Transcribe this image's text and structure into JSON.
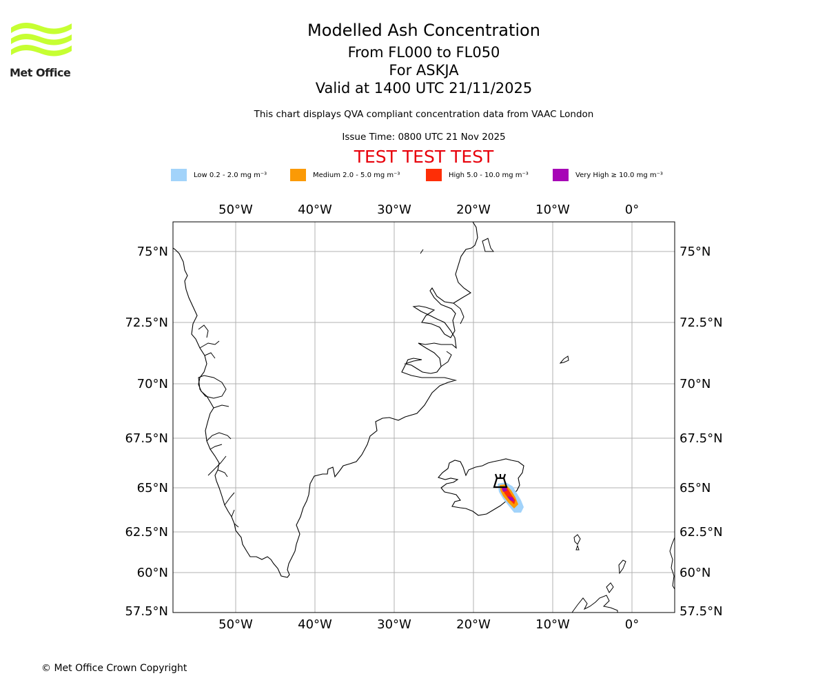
{
  "header": {
    "title": "Modelled Ash Concentration",
    "subtitle_levels": "From FL000 to FL050",
    "subtitle_volcano": "For ASKJA",
    "subtitle_valid": "Valid at 1400 UTC 21/11/2025",
    "description": "This chart displays QVA compliant concentration data from VAAC London",
    "issue_time": "Issue Time: 0800 UTC 21 Nov 2025",
    "test_banner": "TEST TEST TEST"
  },
  "logo": {
    "text": "Met Office",
    "icon": "met-office-wave-logo",
    "color": "#c6ff32"
  },
  "legend": [
    {
      "label": "Low 0.2 - 2.0 mg m⁻³",
      "color": "#a2d3fa"
    },
    {
      "label": "Medium 2.0 - 5.0 mg m⁻³",
      "color": "#fb9a06"
    },
    {
      "label": "High 5.0 - 10.0 mg m⁻³",
      "color": "#fe2e06"
    },
    {
      "label": "Very High  ≥  10.0 mg m⁻³",
      "color": "#a705b6"
    }
  ],
  "map": {
    "lon_labels": [
      "50°W",
      "40°W",
      "30°W",
      "20°W",
      "10°W",
      "0°"
    ],
    "lat_labels": [
      "75°N",
      "72.5°N",
      "70°N",
      "67.5°N",
      "65°N",
      "62.5°N",
      "60°N",
      "57.5°N"
    ],
    "volcano_marker": "volcano-icon"
  },
  "footer": {
    "copyright": "© Met Office Crown Copyright"
  }
}
